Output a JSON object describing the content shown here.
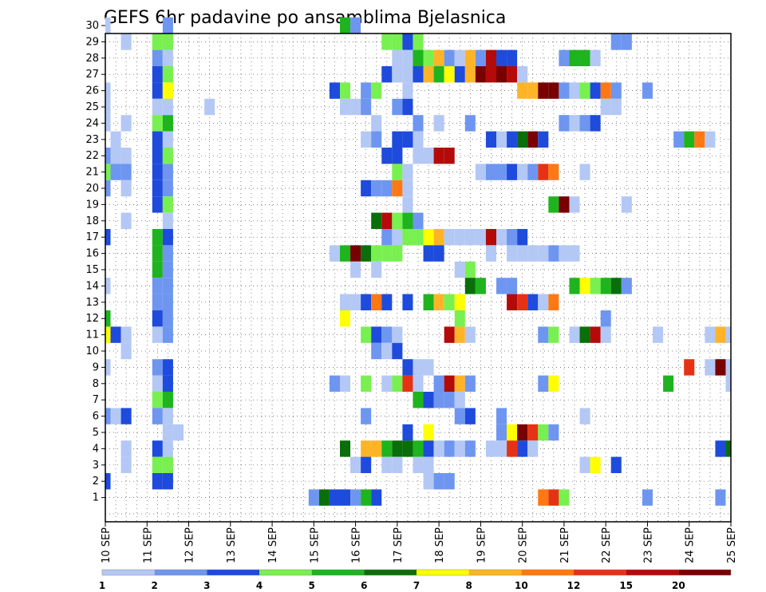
{
  "chart_data": {
    "type": "heatmap",
    "title": "GEFS 6hr padavine po ansamblima Bjelasnica",
    "xlabel": "",
    "ylabel": "",
    "x_ticks": [
      "10 SEP",
      "11 SEP",
      "12 SEP",
      "13 SEP",
      "14 SEP",
      "15 SEP",
      "16 SEP",
      "17 SEP",
      "18 SEP",
      "19 SEP",
      "20 SEP",
      "21 SEP",
      "22 SEP",
      "23 SEP",
      "24 SEP",
      "25 SEP"
    ],
    "y_ticks": [
      1,
      2,
      3,
      4,
      5,
      6,
      7,
      8,
      9,
      10,
      11,
      12,
      13,
      14,
      15,
      16,
      17,
      18,
      19,
      20,
      21,
      22,
      23,
      24,
      25,
      26,
      27,
      28,
      29,
      30
    ],
    "x_unit": "6-hour step (4 steps per day, step 0 = 10 SEP 00Z)",
    "n_steps": 61,
    "n_members": 31,
    "grid": true,
    "colorbar": {
      "labels": [
        "1",
        "2",
        "3",
        "4",
        "5",
        "6",
        "7",
        "8",
        "10",
        "12",
        "15",
        "20"
      ],
      "colors": [
        "#b4c8f5",
        "#6e96f0",
        "#1e4bdc",
        "#78f050",
        "#1eb41e",
        "#0a6e0a",
        "#ffff00",
        "#ffb428",
        "#ff7814",
        "#e63214",
        "#b40a0a",
        "#780000"
      ]
    },
    "cells": [
      [
        0,
        30,
        1
      ],
      [
        6,
        30,
        2
      ],
      [
        23,
        30,
        5
      ],
      [
        24,
        30,
        2
      ],
      [
        2,
        29,
        1
      ],
      [
        5,
        29,
        4
      ],
      [
        6,
        29,
        4
      ],
      [
        27,
        29,
        4
      ],
      [
        28,
        29,
        4
      ],
      [
        29,
        29,
        3
      ],
      [
        30,
        29,
        4
      ],
      [
        49,
        29,
        2
      ],
      [
        50,
        29,
        2
      ],
      [
        5,
        28,
        2
      ],
      [
        6,
        28,
        1
      ],
      [
        28,
        28,
        1
      ],
      [
        29,
        28,
        1
      ],
      [
        30,
        28,
        5
      ],
      [
        31,
        28,
        4
      ],
      [
        32,
        28,
        8
      ],
      [
        33,
        28,
        2
      ],
      [
        34,
        28,
        1
      ],
      [
        35,
        28,
        8
      ],
      [
        36,
        28,
        2
      ],
      [
        37,
        28,
        11
      ],
      [
        38,
        28,
        3
      ],
      [
        39,
        28,
        3
      ],
      [
        44,
        28,
        2
      ],
      [
        45,
        28,
        5
      ],
      [
        46,
        28,
        5
      ],
      [
        47,
        28,
        1
      ],
      [
        5,
        27,
        3
      ],
      [
        6,
        27,
        4
      ],
      [
        27,
        27,
        3
      ],
      [
        28,
        27,
        1
      ],
      [
        29,
        27,
        1
      ],
      [
        30,
        27,
        3
      ],
      [
        31,
        27,
        8
      ],
      [
        32,
        27,
        5
      ],
      [
        33,
        27,
        7
      ],
      [
        34,
        27,
        3
      ],
      [
        35,
        27,
        8
      ],
      [
        36,
        27,
        12
      ],
      [
        37,
        27,
        11
      ],
      [
        38,
        27,
        12
      ],
      [
        39,
        27,
        11
      ],
      [
        40,
        27,
        1
      ],
      [
        0,
        26,
        1
      ],
      [
        5,
        26,
        3
      ],
      [
        6,
        26,
        7
      ],
      [
        22,
        26,
        3
      ],
      [
        23,
        26,
        4
      ],
      [
        25,
        26,
        2
      ],
      [
        26,
        26,
        4
      ],
      [
        29,
        26,
        1
      ],
      [
        40,
        26,
        8
      ],
      [
        41,
        26,
        8
      ],
      [
        42,
        26,
        12
      ],
      [
        43,
        26,
        12
      ],
      [
        44,
        26,
        2
      ],
      [
        45,
        26,
        1
      ],
      [
        46,
        26,
        4
      ],
      [
        47,
        26,
        3
      ],
      [
        48,
        26,
        9
      ],
      [
        49,
        26,
        2
      ],
      [
        52,
        26,
        2
      ],
      [
        0,
        25,
        1
      ],
      [
        5,
        25,
        1
      ],
      [
        6,
        25,
        1
      ],
      [
        10,
        25,
        1
      ],
      [
        23,
        25,
        1
      ],
      [
        24,
        25,
        1
      ],
      [
        25,
        25,
        2
      ],
      [
        28,
        25,
        2
      ],
      [
        29,
        25,
        3
      ],
      [
        48,
        25,
        1
      ],
      [
        49,
        25,
        1
      ],
      [
        0,
        24,
        1
      ],
      [
        2,
        24,
        1
      ],
      [
        5,
        24,
        4
      ],
      [
        6,
        24,
        5
      ],
      [
        26,
        24,
        1
      ],
      [
        30,
        24,
        2
      ],
      [
        32,
        24,
        1
      ],
      [
        35,
        24,
        2
      ],
      [
        44,
        24,
        2
      ],
      [
        45,
        24,
        1
      ],
      [
        46,
        24,
        2
      ],
      [
        47,
        24,
        3
      ],
      [
        1,
        23,
        1
      ],
      [
        5,
        23,
        3
      ],
      [
        6,
        23,
        1
      ],
      [
        25,
        23,
        1
      ],
      [
        26,
        23,
        2
      ],
      [
        28,
        23,
        3
      ],
      [
        29,
        23,
        3
      ],
      [
        30,
        23,
        1
      ],
      [
        37,
        23,
        3
      ],
      [
        38,
        23,
        1
      ],
      [
        39,
        23,
        3
      ],
      [
        40,
        23,
        6
      ],
      [
        41,
        23,
        12
      ],
      [
        42,
        23,
        3
      ],
      [
        55,
        23,
        2
      ],
      [
        56,
        23,
        5
      ],
      [
        57,
        23,
        9
      ],
      [
        58,
        23,
        1
      ],
      [
        0,
        22,
        2
      ],
      [
        1,
        22,
        1
      ],
      [
        2,
        22,
        1
      ],
      [
        5,
        22,
        3
      ],
      [
        6,
        22,
        4
      ],
      [
        27,
        22,
        3
      ],
      [
        28,
        22,
        3
      ],
      [
        30,
        22,
        1
      ],
      [
        31,
        22,
        1
      ],
      [
        32,
        22,
        11
      ],
      [
        33,
        22,
        11
      ],
      [
        0,
        21,
        4
      ],
      [
        1,
        21,
        2
      ],
      [
        2,
        21,
        2
      ],
      [
        5,
        21,
        3
      ],
      [
        6,
        21,
        2
      ],
      [
        28,
        21,
        4
      ],
      [
        29,
        21,
        1
      ],
      [
        36,
        21,
        1
      ],
      [
        37,
        21,
        2
      ],
      [
        38,
        21,
        2
      ],
      [
        39,
        21,
        3
      ],
      [
        40,
        21,
        1
      ],
      [
        41,
        21,
        2
      ],
      [
        42,
        21,
        10
      ],
      [
        43,
        21,
        9
      ],
      [
        46,
        21,
        1
      ],
      [
        0,
        20,
        2
      ],
      [
        2,
        20,
        1
      ],
      [
        5,
        20,
        3
      ],
      [
        6,
        20,
        2
      ],
      [
        25,
        20,
        3
      ],
      [
        26,
        20,
        2
      ],
      [
        27,
        20,
        2
      ],
      [
        28,
        20,
        9
      ],
      [
        29,
        20,
        1
      ],
      [
        5,
        19,
        3
      ],
      [
        6,
        19,
        4
      ],
      [
        29,
        19,
        1
      ],
      [
        43,
        19,
        5
      ],
      [
        44,
        19,
        12
      ],
      [
        45,
        19,
        1
      ],
      [
        50,
        19,
        1
      ],
      [
        2,
        18,
        1
      ],
      [
        6,
        18,
        1
      ],
      [
        26,
        18,
        6
      ],
      [
        27,
        18,
        11
      ],
      [
        28,
        18,
        4
      ],
      [
        29,
        18,
        5
      ],
      [
        30,
        18,
        2
      ],
      [
        0,
        17,
        3
      ],
      [
        5,
        17,
        5
      ],
      [
        6,
        17,
        3
      ],
      [
        27,
        17,
        2
      ],
      [
        28,
        17,
        1
      ],
      [
        29,
        17,
        4
      ],
      [
        30,
        17,
        4
      ],
      [
        31,
        17,
        7
      ],
      [
        32,
        17,
        8
      ],
      [
        33,
        17,
        1
      ],
      [
        34,
        17,
        1
      ],
      [
        35,
        17,
        1
      ],
      [
        36,
        17,
        1
      ],
      [
        37,
        17,
        11
      ],
      [
        38,
        17,
        1
      ],
      [
        39,
        17,
        2
      ],
      [
        40,
        17,
        3
      ],
      [
        5,
        16,
        5
      ],
      [
        6,
        16,
        2
      ],
      [
        22,
        16,
        1
      ],
      [
        23,
        16,
        5
      ],
      [
        24,
        16,
        12
      ],
      [
        25,
        16,
        6
      ],
      [
        26,
        16,
        4
      ],
      [
        27,
        16,
        4
      ],
      [
        28,
        16,
        4
      ],
      [
        31,
        16,
        3
      ],
      [
        32,
        16,
        3
      ],
      [
        37,
        16,
        1
      ],
      [
        39,
        16,
        1
      ],
      [
        40,
        16,
        1
      ],
      [
        41,
        16,
        1
      ],
      [
        42,
        16,
        1
      ],
      [
        43,
        16,
        2
      ],
      [
        44,
        16,
        1
      ],
      [
        45,
        16,
        1
      ],
      [
        5,
        15,
        5
      ],
      [
        6,
        15,
        2
      ],
      [
        24,
        15,
        1
      ],
      [
        26,
        15,
        1
      ],
      [
        34,
        15,
        1
      ],
      [
        35,
        15,
        4
      ],
      [
        0,
        14,
        1
      ],
      [
        5,
        14,
        2
      ],
      [
        6,
        14,
        2
      ],
      [
        35,
        14,
        6
      ],
      [
        36,
        14,
        5
      ],
      [
        38,
        14,
        2
      ],
      [
        39,
        14,
        2
      ],
      [
        45,
        14,
        5
      ],
      [
        46,
        14,
        7
      ],
      [
        47,
        14,
        4
      ],
      [
        48,
        14,
        5
      ],
      [
        49,
        14,
        6
      ],
      [
        50,
        14,
        2
      ],
      [
        5,
        13,
        2
      ],
      [
        6,
        13,
        2
      ],
      [
        23,
        13,
        1
      ],
      [
        24,
        13,
        1
      ],
      [
        25,
        13,
        3
      ],
      [
        26,
        13,
        9
      ],
      [
        27,
        13,
        3
      ],
      [
        29,
        13,
        3
      ],
      [
        31,
        13,
        5
      ],
      [
        32,
        13,
        8
      ],
      [
        33,
        13,
        4
      ],
      [
        34,
        13,
        7
      ],
      [
        39,
        13,
        11
      ],
      [
        40,
        13,
        10
      ],
      [
        41,
        13,
        3
      ],
      [
        42,
        13,
        1
      ],
      [
        43,
        13,
        9
      ],
      [
        0,
        12,
        5
      ],
      [
        5,
        12,
        3
      ],
      [
        6,
        12,
        2
      ],
      [
        23,
        12,
        7
      ],
      [
        34,
        12,
        4
      ],
      [
        48,
        12,
        2
      ],
      [
        0,
        11,
        7
      ],
      [
        1,
        11,
        3
      ],
      [
        2,
        11,
        1
      ],
      [
        5,
        11,
        1
      ],
      [
        6,
        11,
        2
      ],
      [
        25,
        11,
        4
      ],
      [
        26,
        11,
        3
      ],
      [
        27,
        11,
        2
      ],
      [
        28,
        11,
        1
      ],
      [
        33,
        11,
        11
      ],
      [
        34,
        11,
        8
      ],
      [
        35,
        11,
        1
      ],
      [
        42,
        11,
        2
      ],
      [
        43,
        11,
        4
      ],
      [
        45,
        11,
        1
      ],
      [
        46,
        11,
        6
      ],
      [
        47,
        11,
        11
      ],
      [
        48,
        11,
        1
      ],
      [
        53,
        11,
        1
      ],
      [
        58,
        11,
        1
      ],
      [
        59,
        11,
        8
      ],
      [
        60,
        11,
        1
      ],
      [
        2,
        10,
        1
      ],
      [
        26,
        10,
        2
      ],
      [
        27,
        10,
        1
      ],
      [
        28,
        10,
        3
      ],
      [
        0,
        9,
        1
      ],
      [
        5,
        9,
        2
      ],
      [
        6,
        9,
        3
      ],
      [
        29,
        9,
        3
      ],
      [
        30,
        9,
        1
      ],
      [
        31,
        9,
        1
      ],
      [
        56,
        9,
        10
      ],
      [
        58,
        9,
        1
      ],
      [
        59,
        9,
        12
      ],
      [
        60,
        9,
        1
      ],
      [
        5,
        8,
        1
      ],
      [
        6,
        8,
        3
      ],
      [
        22,
        8,
        2
      ],
      [
        23,
        8,
        1
      ],
      [
        25,
        8,
        4
      ],
      [
        27,
        8,
        1
      ],
      [
        28,
        8,
        4
      ],
      [
        29,
        8,
        10
      ],
      [
        30,
        8,
        1
      ],
      [
        32,
        8,
        2
      ],
      [
        33,
        8,
        11
      ],
      [
        34,
        8,
        8
      ],
      [
        35,
        8,
        2
      ],
      [
        42,
        8,
        2
      ],
      [
        43,
        8,
        7
      ],
      [
        54,
        8,
        5
      ],
      [
        60,
        8,
        1
      ],
      [
        5,
        7,
        4
      ],
      [
        6,
        7,
        5
      ],
      [
        30,
        7,
        5
      ],
      [
        31,
        7,
        3
      ],
      [
        32,
        7,
        2
      ],
      [
        33,
        7,
        2
      ],
      [
        34,
        7,
        1
      ],
      [
        0,
        6,
        2
      ],
      [
        1,
        6,
        1
      ],
      [
        2,
        6,
        3
      ],
      [
        5,
        6,
        2
      ],
      [
        6,
        6,
        1
      ],
      [
        25,
        6,
        2
      ],
      [
        34,
        6,
        2
      ],
      [
        35,
        6,
        3
      ],
      [
        38,
        6,
        2
      ],
      [
        46,
        6,
        1
      ],
      [
        6,
        5,
        1
      ],
      [
        7,
        5,
        1
      ],
      [
        29,
        5,
        3
      ],
      [
        31,
        5,
        7
      ],
      [
        38,
        5,
        2
      ],
      [
        39,
        5,
        7
      ],
      [
        40,
        5,
        12
      ],
      [
        41,
        5,
        10
      ],
      [
        42,
        5,
        4
      ],
      [
        43,
        5,
        2
      ],
      [
        2,
        4,
        1
      ],
      [
        5,
        4,
        3
      ],
      [
        6,
        4,
        1
      ],
      [
        23,
        4,
        6
      ],
      [
        25,
        4,
        8
      ],
      [
        26,
        4,
        8
      ],
      [
        27,
        4,
        5
      ],
      [
        28,
        4,
        6
      ],
      [
        29,
        4,
        6
      ],
      [
        30,
        4,
        5
      ],
      [
        31,
        4,
        3
      ],
      [
        32,
        4,
        1
      ],
      [
        33,
        4,
        2
      ],
      [
        34,
        4,
        1
      ],
      [
        35,
        4,
        2
      ],
      [
        37,
        4,
        1
      ],
      [
        38,
        4,
        1
      ],
      [
        39,
        4,
        10
      ],
      [
        40,
        4,
        3
      ],
      [
        41,
        4,
        1
      ],
      [
        59,
        4,
        3
      ],
      [
        60,
        4,
        6
      ],
      [
        2,
        3,
        1
      ],
      [
        5,
        3,
        4
      ],
      [
        6,
        3,
        4
      ],
      [
        24,
        3,
        1
      ],
      [
        25,
        3,
        3
      ],
      [
        27,
        3,
        1
      ],
      [
        28,
        3,
        1
      ],
      [
        30,
        3,
        1
      ],
      [
        31,
        3,
        1
      ],
      [
        46,
        3,
        1
      ],
      [
        47,
        3,
        7
      ],
      [
        49,
        3,
        3
      ],
      [
        0,
        2,
        3
      ],
      [
        5,
        2,
        3
      ],
      [
        6,
        2,
        3
      ],
      [
        31,
        2,
        1
      ],
      [
        32,
        2,
        2
      ],
      [
        33,
        2,
        2
      ],
      [
        20,
        1,
        2
      ],
      [
        21,
        1,
        6
      ],
      [
        22,
        1,
        3
      ],
      [
        23,
        1,
        3
      ],
      [
        24,
        1,
        2
      ],
      [
        25,
        1,
        5
      ],
      [
        26,
        1,
        3
      ],
      [
        42,
        1,
        9
      ],
      [
        43,
        1,
        10
      ],
      [
        44,
        1,
        4
      ],
      [
        52,
        1,
        2
      ],
      [
        59,
        1,
        2
      ]
    ]
  }
}
